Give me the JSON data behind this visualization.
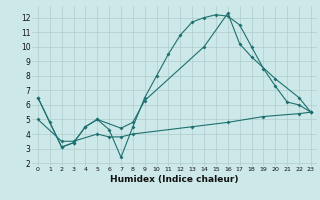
{
  "bg_color": "#cde8e8",
  "grid_color": "#b0cccc",
  "line_color": "#1e7070",
  "xlabel": "Humidex (Indice chaleur)",
  "xlim": [
    -0.5,
    23.5
  ],
  "ylim": [
    1.8,
    12.8
  ],
  "yticks": [
    2,
    3,
    4,
    5,
    6,
    7,
    8,
    9,
    10,
    11,
    12
  ],
  "xticks": [
    0,
    1,
    2,
    3,
    4,
    5,
    6,
    7,
    8,
    9,
    10,
    11,
    12,
    13,
    14,
    15,
    16,
    17,
    18,
    19,
    20,
    21,
    22,
    23
  ],
  "line1_x": [
    0,
    1,
    2,
    3,
    4,
    5,
    6,
    7,
    8,
    9,
    10,
    11,
    12,
    13,
    14,
    15,
    16,
    17,
    18,
    19,
    20,
    21,
    22,
    23
  ],
  "line1_y": [
    6.5,
    4.8,
    3.1,
    3.4,
    4.5,
    5.0,
    4.3,
    2.4,
    4.5,
    6.5,
    8.0,
    9.5,
    10.8,
    11.7,
    12.0,
    12.2,
    12.1,
    11.5,
    10.0,
    8.5,
    7.3,
    6.2,
    6.0,
    5.5
  ],
  "line2_x": [
    0,
    2,
    3,
    4,
    5,
    7,
    8,
    9,
    14,
    16,
    17,
    18,
    20,
    22,
    23
  ],
  "line2_y": [
    6.5,
    3.1,
    3.4,
    4.5,
    5.0,
    4.4,
    4.8,
    6.3,
    10.0,
    12.3,
    10.2,
    9.3,
    7.8,
    6.5,
    5.5
  ],
  "line3_x": [
    0,
    2,
    3,
    5,
    6,
    7,
    8,
    13,
    16,
    19,
    22,
    23
  ],
  "line3_y": [
    5.0,
    3.5,
    3.5,
    4.0,
    3.8,
    3.8,
    4.0,
    4.5,
    4.8,
    5.2,
    5.4,
    5.5
  ]
}
